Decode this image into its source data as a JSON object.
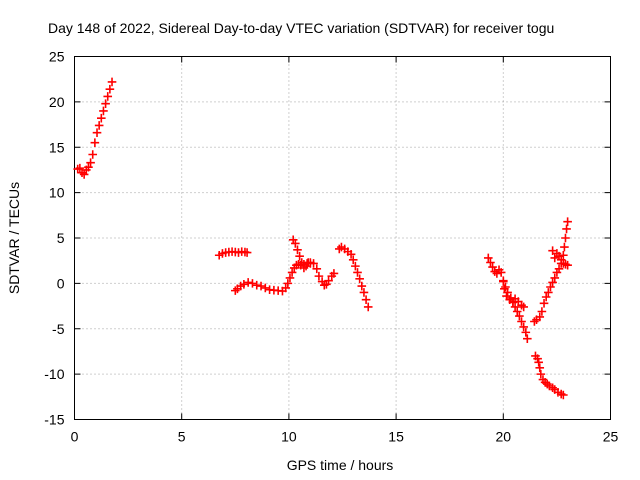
{
  "chart_data": {
    "type": "scatter",
    "title": "Day 148 of 2022, Sidereal Day-to-day VTEC variation (SDTVAR) for receiver togu",
    "xlabel": "GPS time / hours",
    "ylabel": "SDTVAR / TECUs",
    "xlim": [
      0,
      25
    ],
    "ylim": [
      -15,
      25
    ],
    "xticks": [
      0,
      5,
      10,
      15,
      20,
      25
    ],
    "yticks": [
      -15,
      -10,
      -5,
      0,
      5,
      10,
      15,
      20,
      25
    ],
    "grid": true,
    "marker": "plus",
    "color": "#ff0000",
    "series": [
      {
        "points": [
          [
            0.15,
            12.6
          ],
          [
            0.25,
            12.7
          ],
          [
            0.35,
            12.2
          ],
          [
            0.45,
            12.0
          ],
          [
            0.55,
            12.5
          ],
          [
            0.65,
            12.8
          ],
          [
            0.75,
            13.3
          ],
          [
            0.85,
            14.2
          ],
          [
            0.95,
            15.5
          ],
          [
            1.05,
            16.6
          ],
          [
            1.15,
            17.4
          ],
          [
            1.25,
            18.2
          ],
          [
            1.35,
            19.0
          ],
          [
            1.45,
            19.8
          ],
          [
            1.55,
            20.6
          ],
          [
            1.65,
            21.4
          ],
          [
            1.75,
            22.2
          ],
          [
            6.75,
            3.1
          ],
          [
            6.9,
            3.3
          ],
          [
            7.05,
            3.4
          ],
          [
            7.2,
            3.45
          ],
          [
            7.35,
            3.5
          ],
          [
            7.5,
            3.45
          ],
          [
            7.65,
            3.4
          ],
          [
            7.8,
            3.5
          ],
          [
            7.95,
            3.45
          ],
          [
            8.05,
            3.4
          ],
          [
            7.5,
            -0.8
          ],
          [
            7.6,
            -0.6
          ],
          [
            7.75,
            -0.3
          ],
          [
            7.9,
            -0.1
          ],
          [
            8.1,
            0.1
          ],
          [
            8.3,
            0.0
          ],
          [
            8.5,
            -0.2
          ],
          [
            8.7,
            -0.3
          ],
          [
            8.9,
            -0.5
          ],
          [
            9.1,
            -0.7
          ],
          [
            9.3,
            -0.75
          ],
          [
            9.5,
            -0.8
          ],
          [
            9.7,
            -0.85
          ],
          [
            9.85,
            -0.5
          ],
          [
            9.95,
            0.0
          ],
          [
            10.05,
            0.6
          ],
          [
            10.15,
            1.2
          ],
          [
            10.25,
            1.7
          ],
          [
            10.35,
            2.0
          ],
          [
            10.45,
            2.1
          ],
          [
            10.55,
            2.0
          ],
          [
            10.7,
            2.1
          ],
          [
            10.85,
            2.2
          ],
          [
            11.0,
            2.3
          ],
          [
            11.15,
            2.2
          ],
          [
            11.3,
            1.6
          ],
          [
            11.4,
            0.8
          ],
          [
            11.55,
            0.2
          ],
          [
            11.65,
            -0.2
          ],
          [
            11.75,
            -0.1
          ],
          [
            11.85,
            0.3
          ],
          [
            12.0,
            0.8
          ],
          [
            12.1,
            1.1
          ],
          [
            10.2,
            4.8
          ],
          [
            10.3,
            4.4
          ],
          [
            10.4,
            3.7
          ],
          [
            10.5,
            3.0
          ],
          [
            10.6,
            2.3
          ],
          [
            10.7,
            1.7
          ],
          [
            10.8,
            1.9
          ],
          [
            10.9,
            2.3
          ],
          [
            11.0,
            2.2
          ],
          [
            12.35,
            3.8
          ],
          [
            12.45,
            4.0
          ],
          [
            12.6,
            3.8
          ],
          [
            12.75,
            3.5
          ],
          [
            12.9,
            3.2
          ],
          [
            13.0,
            2.6
          ],
          [
            13.1,
            1.9
          ],
          [
            13.2,
            1.2
          ],
          [
            13.3,
            0.5
          ],
          [
            13.4,
            -0.3
          ],
          [
            13.5,
            -1.0
          ],
          [
            13.6,
            -1.8
          ],
          [
            13.7,
            -2.6
          ],
          [
            19.3,
            2.8
          ],
          [
            19.4,
            2.3
          ],
          [
            19.5,
            1.8
          ],
          [
            19.6,
            1.3
          ],
          [
            19.7,
            1.1
          ],
          [
            19.8,
            1.5
          ],
          [
            19.9,
            1.2
          ],
          [
            20.0,
            0.3
          ],
          [
            20.05,
            -0.6
          ],
          [
            20.15,
            -1.4
          ],
          [
            20.3,
            -1.8
          ],
          [
            20.45,
            -2.0
          ],
          [
            20.55,
            -1.7
          ],
          [
            20.7,
            -2.0
          ],
          [
            20.85,
            -2.4
          ],
          [
            20.95,
            -2.6
          ],
          [
            20.0,
            0.2
          ],
          [
            20.1,
            -0.4
          ],
          [
            20.2,
            -1.0
          ],
          [
            20.35,
            -1.6
          ],
          [
            20.45,
            -2.1
          ],
          [
            20.55,
            -2.6
          ],
          [
            20.65,
            -3.1
          ],
          [
            20.75,
            -3.6
          ],
          [
            20.85,
            -4.2
          ],
          [
            20.95,
            -4.8
          ],
          [
            21.05,
            -5.4
          ],
          [
            21.12,
            -6.1
          ],
          [
            21.45,
            -4.2
          ],
          [
            21.55,
            -4.0
          ],
          [
            21.7,
            -3.7
          ],
          [
            21.8,
            -3.1
          ],
          [
            21.9,
            -2.2
          ],
          [
            22.0,
            -1.5
          ],
          [
            22.1,
            -1.0
          ],
          [
            22.2,
            -0.4
          ],
          [
            22.3,
            0.1
          ],
          [
            22.4,
            0.6
          ],
          [
            22.5,
            1.2
          ],
          [
            22.6,
            1.6
          ],
          [
            22.7,
            2.2
          ],
          [
            22.8,
            3.1
          ],
          [
            22.85,
            4.0
          ],
          [
            22.9,
            5.0
          ],
          [
            22.95,
            6.0
          ],
          [
            23.0,
            6.8
          ],
          [
            22.3,
            3.6
          ],
          [
            22.4,
            2.8
          ],
          [
            22.5,
            3.3
          ],
          [
            22.6,
            3.0
          ],
          [
            22.7,
            2.6
          ],
          [
            22.8,
            2.2
          ],
          [
            22.9,
            2.1
          ],
          [
            23.0,
            2.0
          ],
          [
            21.5,
            -8.0
          ],
          [
            21.6,
            -8.3
          ],
          [
            21.65,
            -8.7
          ],
          [
            21.7,
            -9.3
          ],
          [
            21.75,
            -10.0
          ],
          [
            21.85,
            -10.6
          ],
          [
            21.95,
            -10.9
          ],
          [
            22.05,
            -11.1
          ],
          [
            22.15,
            -11.3
          ],
          [
            22.3,
            -11.5
          ],
          [
            22.4,
            -11.7
          ],
          [
            22.55,
            -12.0
          ],
          [
            22.7,
            -12.2
          ],
          [
            22.8,
            -12.3
          ]
        ]
      }
    ]
  }
}
